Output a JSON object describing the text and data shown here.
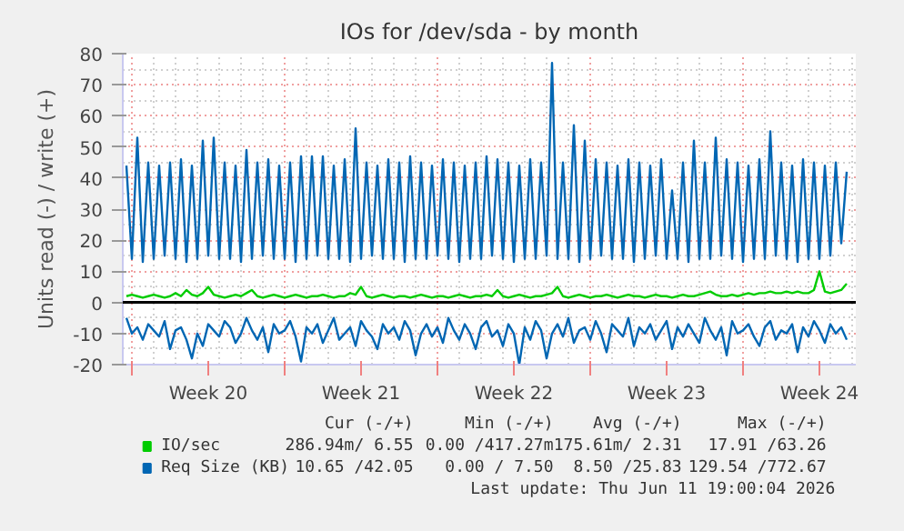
{
  "chart_data": {
    "type": "line",
    "title": "IOs for /dev/sda - by month",
    "ylabel": "Units read (-) / write (+)",
    "x": [
      "2026-05-09T18:00",
      "2026-05-10T00:00",
      "2026-05-10T06:00",
      "2026-05-10T12:00",
      "2026-05-10T18:00",
      "2026-05-11T00:00",
      "2026-05-11T06:00",
      "2026-05-11T12:00",
      "2026-05-11T18:00",
      "2026-05-12T00:00",
      "2026-05-12T06:00",
      "2026-05-12T12:00",
      "2026-05-12T18:00",
      "2026-05-13T00:00",
      "2026-05-13T06:00",
      "2026-05-13T12:00",
      "2026-05-13T18:00",
      "2026-05-14T00:00",
      "2026-05-14T06:00",
      "2026-05-14T12:00",
      "2026-05-14T18:00",
      "2026-05-15T00:00",
      "2026-05-15T06:00",
      "2026-05-15T12:00",
      "2026-05-15T18:00",
      "2026-05-16T00:00",
      "2026-05-16T06:00",
      "2026-05-16T12:00",
      "2026-05-16T18:00",
      "2026-05-17T00:00",
      "2026-05-17T06:00",
      "2026-05-17T12:00",
      "2026-05-17T18:00",
      "2026-05-18T00:00",
      "2026-05-18T06:00",
      "2026-05-18T12:00",
      "2026-05-18T18:00",
      "2026-05-19T00:00",
      "2026-05-19T06:00",
      "2026-05-19T12:00",
      "2026-05-19T18:00",
      "2026-05-20T00:00",
      "2026-05-20T06:00",
      "2026-05-20T12:00",
      "2026-05-20T18:00",
      "2026-05-21T00:00",
      "2026-05-21T06:00",
      "2026-05-21T12:00",
      "2026-05-21T18:00",
      "2026-05-22T00:00",
      "2026-05-22T06:00",
      "2026-05-22T12:00",
      "2026-05-22T18:00",
      "2026-05-23T00:00",
      "2026-05-23T06:00",
      "2026-05-23T12:00",
      "2026-05-23T18:00",
      "2026-05-24T00:00",
      "2026-05-24T06:00",
      "2026-05-24T12:00",
      "2026-05-24T18:00",
      "2026-05-25T00:00",
      "2026-05-25T06:00",
      "2026-05-25T12:00",
      "2026-05-25T18:00",
      "2026-05-26T00:00",
      "2026-05-26T06:00",
      "2026-05-26T12:00",
      "2026-05-26T18:00",
      "2026-05-27T00:00",
      "2026-05-27T06:00",
      "2026-05-27T12:00",
      "2026-05-27T18:00",
      "2026-05-28T00:00",
      "2026-05-28T06:00",
      "2026-05-28T12:00",
      "2026-05-28T18:00",
      "2026-05-29T00:00",
      "2026-05-29T06:00",
      "2026-05-29T12:00",
      "2026-05-29T18:00",
      "2026-05-30T00:00",
      "2026-05-30T06:00",
      "2026-05-30T12:00",
      "2026-05-30T18:00",
      "2026-05-31T00:00",
      "2026-05-31T06:00",
      "2026-05-31T12:00",
      "2026-05-31T18:00",
      "2026-06-01T00:00",
      "2026-06-01T06:00",
      "2026-06-01T12:00",
      "2026-06-01T18:00",
      "2026-06-02T00:00",
      "2026-06-02T06:00",
      "2026-06-02T12:00",
      "2026-06-02T18:00",
      "2026-06-03T00:00",
      "2026-06-03T06:00",
      "2026-06-03T12:00",
      "2026-06-03T18:00",
      "2026-06-04T00:00",
      "2026-06-04T06:00",
      "2026-06-04T12:00",
      "2026-06-04T18:00",
      "2026-06-05T00:00",
      "2026-06-05T06:00",
      "2026-06-05T12:00",
      "2026-06-05T18:00",
      "2026-06-06T00:00",
      "2026-06-06T06:00",
      "2026-06-06T12:00",
      "2026-06-06T18:00",
      "2026-06-07T00:00",
      "2026-06-07T06:00",
      "2026-06-07T12:00",
      "2026-06-07T18:00",
      "2026-06-08T00:00",
      "2026-06-08T06:00",
      "2026-06-08T12:00",
      "2026-06-08T18:00",
      "2026-06-09T00:00",
      "2026-06-09T06:00",
      "2026-06-09T12:00",
      "2026-06-09T18:00",
      "2026-06-10T00:00",
      "2026-06-10T06:00",
      "2026-06-10T12:00",
      "2026-06-10T18:00",
      "2026-06-11T00:00",
      "2026-06-11T06:00",
      "2026-06-11T12:00",
      "2026-06-11T18:00"
    ],
    "series": [
      {
        "name": "Req Size (KB)",
        "color": "#0066b3",
        "values": [
          44,
          14,
          53,
          13,
          45,
          14,
          44,
          15,
          45,
          14,
          46,
          13,
          44,
          14,
          52,
          15,
          53,
          14,
          45,
          14,
          44,
          13,
          49,
          14,
          45,
          15,
          46,
          14,
          44,
          14,
          45,
          13,
          47,
          14,
          47,
          15,
          47,
          14,
          44,
          14,
          46,
          13,
          56,
          14,
          45,
          15,
          44,
          14,
          46,
          14,
          45,
          13,
          47,
          14,
          45,
          14,
          44,
          15,
          46,
          14,
          45,
          13,
          44,
          14,
          45,
          14,
          47,
          15,
          46,
          14,
          45,
          13,
          44,
          14,
          46,
          14,
          45,
          15,
          77,
          14,
          45,
          14,
          57,
          13,
          52,
          14,
          46,
          15,
          45,
          14,
          44,
          14,
          46,
          13,
          45,
          14,
          44,
          15,
          46,
          14,
          36,
          14,
          45,
          13,
          52,
          14,
          45,
          14,
          53,
          15,
          46,
          14,
          45,
          13,
          44,
          14,
          46,
          14,
          55,
          15,
          45,
          14,
          44,
          13,
          46,
          14,
          45,
          14,
          44,
          15,
          45,
          19,
          42
        ]
      },
      {
        "color": "#0066b3",
        "values": [
          -5,
          -10,
          -8,
          -12,
          -7,
          -9,
          -11,
          -6,
          -15,
          -9,
          -8,
          -12,
          -18,
          -10,
          -14,
          -7,
          -9,
          -11,
          -6,
          -8,
          -13,
          -10,
          -5,
          -9,
          -12,
          -8,
          -16,
          -7,
          -10,
          -9,
          -6,
          -11,
          -19,
          -8,
          -10,
          -7,
          -13,
          -9,
          -5,
          -12,
          -10,
          -8,
          -14,
          -6,
          -9,
          -11,
          -15,
          -7,
          -10,
          -8,
          -12,
          -6,
          -9,
          -17,
          -10,
          -7,
          -11,
          -8,
          -13,
          -5,
          -9,
          -12,
          -7,
          -10,
          -15,
          -8,
          -6,
          -11,
          -9,
          -14,
          -7,
          -10,
          -20,
          -8,
          -12,
          -6,
          -9,
          -18,
          -10,
          -7,
          -11,
          -5,
          -13,
          -9,
          -8,
          -12,
          -6,
          -10,
          -16,
          -7,
          -9,
          -11,
          -5,
          -14,
          -8,
          -10,
          -7,
          -12,
          -9,
          -6,
          -15,
          -8,
          -11,
          -7,
          -10,
          -13,
          -5,
          -9,
          -12,
          -8,
          -17,
          -6,
          -10,
          -9,
          -7,
          -11,
          -14,
          -8,
          -6,
          -12,
          -9,
          -10,
          -7,
          -16,
          -8,
          -11,
          -6,
          -9,
          -13,
          -7,
          -10,
          -8,
          -12
        ]
      },
      {
        "name": "IO/sec",
        "color": "#00cc00",
        "values": [
          2,
          2.5,
          2,
          1.5,
          2,
          2.5,
          2,
          1.5,
          2,
          3,
          2,
          4,
          2.5,
          2,
          3,
          5,
          2.5,
          2,
          1.5,
          2,
          2.5,
          2,
          3,
          4,
          2,
          1.5,
          2,
          2.5,
          2,
          1.5,
          2,
          2.5,
          2,
          1.5,
          2,
          2,
          2.5,
          2,
          1.5,
          2,
          2,
          3,
          2.5,
          5,
          2,
          1.5,
          2,
          2.5,
          2,
          1.5,
          2,
          2,
          1.5,
          2,
          2.5,
          2,
          1.5,
          2,
          2,
          1.5,
          2,
          2.5,
          2,
          1.5,
          2,
          2,
          2.5,
          2,
          4,
          2,
          1.5,
          2,
          2.5,
          2,
          1.5,
          2,
          2,
          2.5,
          3,
          5,
          2,
          1.5,
          2,
          2.5,
          2,
          1.5,
          2,
          2,
          2.5,
          2,
          1.5,
          2,
          2.5,
          2,
          2,
          1.5,
          2,
          2.5,
          2,
          2,
          1.5,
          2,
          2.5,
          2,
          2,
          2.5,
          3,
          3.5,
          2.5,
          2,
          2,
          2.5,
          2,
          2.5,
          3,
          2.5,
          3,
          3,
          3.5,
          3,
          3,
          3.5,
          3,
          3.5,
          3,
          3,
          4,
          10,
          3.5,
          3,
          3.5,
          4,
          6
        ]
      }
    ],
    "xlim": [
      "2026-05-09T14:00",
      "2026-06-12T04:00"
    ],
    "xticks": [
      {
        "value": "2026-05-10",
        "label": null
      },
      {
        "value": "2026-05-13T12:00",
        "label": "Week 20"
      },
      {
        "value": "2026-05-17",
        "label": null
      },
      {
        "value": "2026-05-20T12:00",
        "label": "Week 21"
      },
      {
        "value": "2026-05-24",
        "label": null
      },
      {
        "value": "2026-05-27T12:00",
        "label": "Week 22"
      },
      {
        "value": "2026-05-31",
        "label": null
      },
      {
        "value": "2026-06-03T12:00",
        "label": "Week 23"
      },
      {
        "value": "2026-06-07",
        "label": null
      },
      {
        "value": "2026-06-10T12:00",
        "label": "Week 24"
      }
    ],
    "ylim": [
      -20,
      80
    ],
    "yticks": [
      -20,
      -10,
      0,
      10,
      20,
      30,
      40,
      50,
      60,
      70,
      80
    ],
    "ref_lines": [
      {
        "axis": "y",
        "value": 0,
        "color": "#000000"
      }
    ],
    "grid": true,
    "legend": "bottom",
    "line_style": "solid",
    "annotations": [
      "Cur (-/+)",
      "Min (-/+)",
      "Avg (-/+)",
      "Max (-/+)",
      "286.94m/ 6.55",
      "0.00 /417.27m",
      "175.61m/ 2.31",
      "17.91 /63.26",
      "10.65 /42.05",
      "0.00 / 7.50",
      "8.50 /25.83",
      "129.54 /772.67",
      "Last update: Thu Jun 11 19:00:04 2026"
    ]
  }
}
